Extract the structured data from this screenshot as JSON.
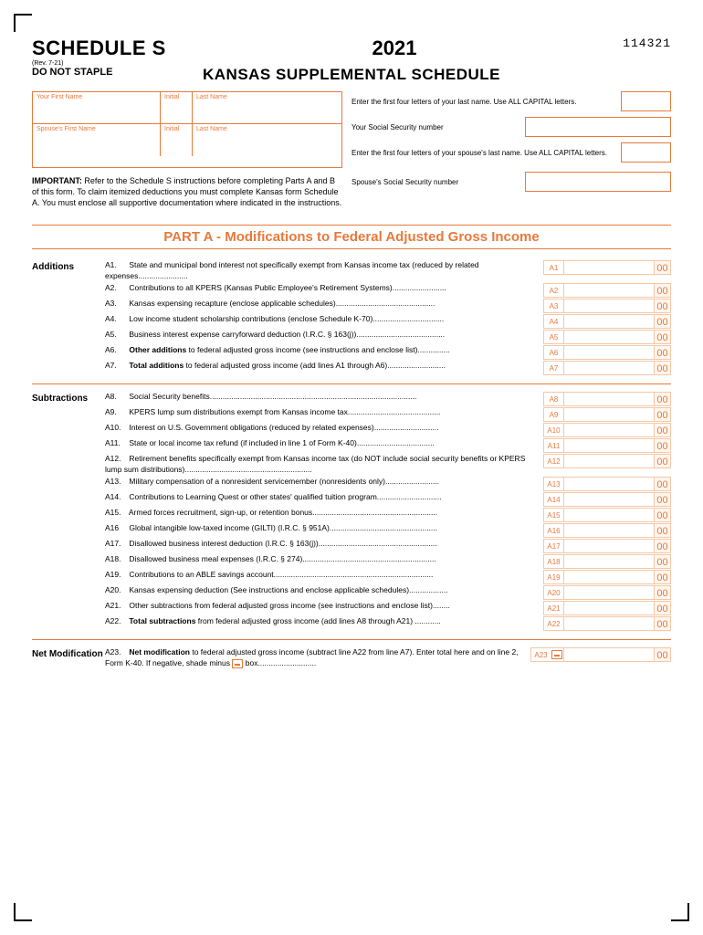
{
  "header": {
    "schedule": "SCHEDULE S",
    "rev": "(Rev. 7-21)",
    "no_staple": "DO NOT STAPLE",
    "year": "2021",
    "form_num": "114321",
    "title": "KANSAS SUPPLEMENTAL SCHEDULE"
  },
  "names": {
    "first_label": "Your First Name",
    "init_label": "Initial",
    "last_label": "Last Name",
    "sp_first_label": "Spouse's First Name",
    "sp_init_label": "Initial",
    "sp_last_label": "Last Name"
  },
  "right": {
    "l1": "Enter the first four letters of your last name. Use ALL CAPITAL letters.",
    "l2": "Your Social Security number",
    "l3": "Enter the first four letters of your spouse's last name. Use ALL CAPITAL letters.",
    "l4": "Spouse's Social Security number"
  },
  "important": {
    "label": "IMPORTANT:",
    "text": " Refer to the Schedule S instructions before completing Parts A and B of this form. To claim itemized deductions you must complete Kansas form Schedule A. You must enclose all supportive documentation where indicated in the instructions."
  },
  "part_a": "PART A - Modifications to Federal Adjusted Gross Income",
  "sections": {
    "additions": "Additions",
    "subtractions": "Subtractions",
    "net": "Net Modification"
  },
  "lines": {
    "a1": {
      "n": "A1.",
      "t": "State and municipal bond interest not specifically exempt from Kansas income tax (reduced by related expenses.......................",
      "id": "A1"
    },
    "a2": {
      "n": "A2.",
      "t": "Contributions to all KPERS (Kansas Public Employee's Retirement Systems).........................",
      "id": "A2"
    },
    "a3": {
      "n": "A3.",
      "t": "Kansas expensing recapture (enclose applicable schedules)..............................................",
      "id": "A3"
    },
    "a4": {
      "n": "A4.",
      "t": "Low income student scholarship contributions (enclose Schedule K-70).................................",
      "id": "A4"
    },
    "a5": {
      "n": "A5.",
      "t": "Business interest expense carryforward deduction (I.R.C. § 163(j)).........................................",
      "id": "A5"
    },
    "a6": {
      "n": "A6.",
      "t": "Other additions to federal adjusted gross income (see instructions and enclose list)...............",
      "id": "A6",
      "bold": "Other additions"
    },
    "a7": {
      "n": "A7.",
      "t": "Total additions to federal adjusted gross income (add lines A1 through A6)...........................",
      "id": "A7",
      "bold": "Total additions"
    },
    "a8": {
      "n": "A8.",
      "t": "Social Security benefits................................................................................................",
      "id": "A8"
    },
    "a9": {
      "n": "A9.",
      "t": "KPERS lump sum distributions exempt from Kansas income tax...........................................",
      "id": "A9"
    },
    "a10": {
      "n": "A10.",
      "t": "Interest on U.S. Government obligations (reduced by related expenses)..............................",
      "id": "A10"
    },
    "a11": {
      "n": "A11.",
      "t": "State or local income tax refund (if included in line 1 of Form K-40)....................................",
      "id": "A11"
    },
    "a12": {
      "n": "A12.",
      "t": "Retirement benefits specifically exempt from Kansas income tax (do NOT include social security benefits or KPERS lump sum distributions)...........................................................",
      "id": "A12"
    },
    "a13": {
      "n": "A13.",
      "t": "Military compensation of a nonresident servicemember (nonresidents only).........................",
      "id": "A13"
    },
    "a14": {
      "n": "A14.",
      "t": "Contributions to Learning Quest or other states' qualified tuition program..............................",
      "id": "A14"
    },
    "a15": {
      "n": "A15.",
      "t": "Armed forces recruitment, sign-up, or retention bonus..........................................................",
      "id": "A15"
    },
    "a16": {
      "n": "A16",
      "t": "Global intangible low-taxed income (GILTI) (I.R.C. § 951A)..................................................",
      "id": "A16"
    },
    "a17": {
      "n": "A17.",
      "t": "Disallowed business interest deduction (I.R.C. § 163(j)).......................................................",
      "id": "A17"
    },
    "a18": {
      "n": "A18.",
      "t": "Disallowed business meal expenses (I.R.C. § 274)..............................................................",
      "id": "A18"
    },
    "a19": {
      "n": "A19.",
      "t": "Contributions to an ABLE savings account..........................................................................",
      "id": "A19"
    },
    "a20": {
      "n": "A20.",
      "t": "Kansas expensing deduction (See instructions and enclose applicable schedules)..................",
      "id": "A20"
    },
    "a21": {
      "n": "A21.",
      "t": "Other subtractions from federal adjusted gross income (see instructions and enclose list)........",
      "id": "A21"
    },
    "a22": {
      "n": "A22.",
      "t": "Total subtractions from federal adjusted gross income (add lines A8 through A21) ............",
      "id": "A22",
      "bold": "Total subtractions"
    },
    "a23": {
      "n": "A23.",
      "t": "Net modification to federal adjusted gross income (subtract line A22 from line A7). Enter total here and on line 2, Form K-40. If negative, shade minus ",
      "t2": " box...........................",
      "id": "A23",
      "bold": "Net modification"
    }
  },
  "cents": "00",
  "colors": {
    "accent": "#e67a3c",
    "light": "#f4c8a8",
    "bg": "#fdf5ee"
  }
}
